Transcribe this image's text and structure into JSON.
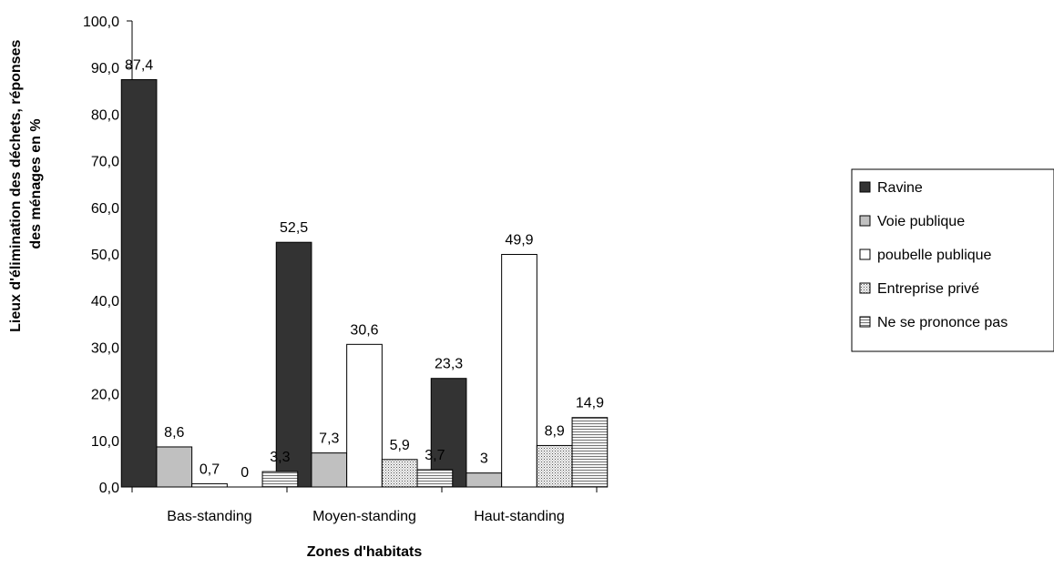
{
  "chart_data": {
    "type": "bar",
    "title": "",
    "xlabel": "Zones d'habitats",
    "ylabel_lines": [
      "Lieux d'élimination des déchets, réponses",
      "des ménages en %"
    ],
    "ylim": [
      0,
      100
    ],
    "yticks": [
      "0,0",
      "10,0",
      "20,0",
      "30,0",
      "40,0",
      "50,0",
      "60,0",
      "70,0",
      "80,0",
      "90,0",
      "100,0"
    ],
    "grid": false,
    "legend_position": "right",
    "categories": [
      "Bas-standing",
      "Moyen-standing",
      "Haut-standing"
    ],
    "series": [
      {
        "name": "Ravine",
        "values": [
          87.4,
          52.5,
          23.3
        ],
        "labels": [
          "87,4",
          "52,5",
          "23,3"
        ],
        "fill": "#333333",
        "pattern": "solid"
      },
      {
        "name": "Voie publique",
        "values": [
          8.6,
          7.3,
          3
        ],
        "labels": [
          "8,6",
          "7,3",
          "3"
        ],
        "fill": "#c0c0c0",
        "pattern": "solid"
      },
      {
        "name": "poubelle publique",
        "values": [
          0.7,
          30.6,
          49.9
        ],
        "labels": [
          "0,7",
          "30,6",
          "49,9"
        ],
        "fill": "#ffffff",
        "pattern": "solid"
      },
      {
        "name": "Entreprise privé",
        "values": [
          0,
          5.9,
          8.9
        ],
        "labels": [
          "0",
          "5,9",
          "8,9"
        ],
        "fill": "#d8d8d8",
        "pattern": "dots"
      },
      {
        "name": "Ne se prononce pas",
        "values": [
          3.3,
          3.7,
          14.9
        ],
        "labels": [
          "3,3",
          "3,7",
          "14,9"
        ],
        "fill": "#e0e0e0",
        "pattern": "hlines"
      }
    ]
  }
}
